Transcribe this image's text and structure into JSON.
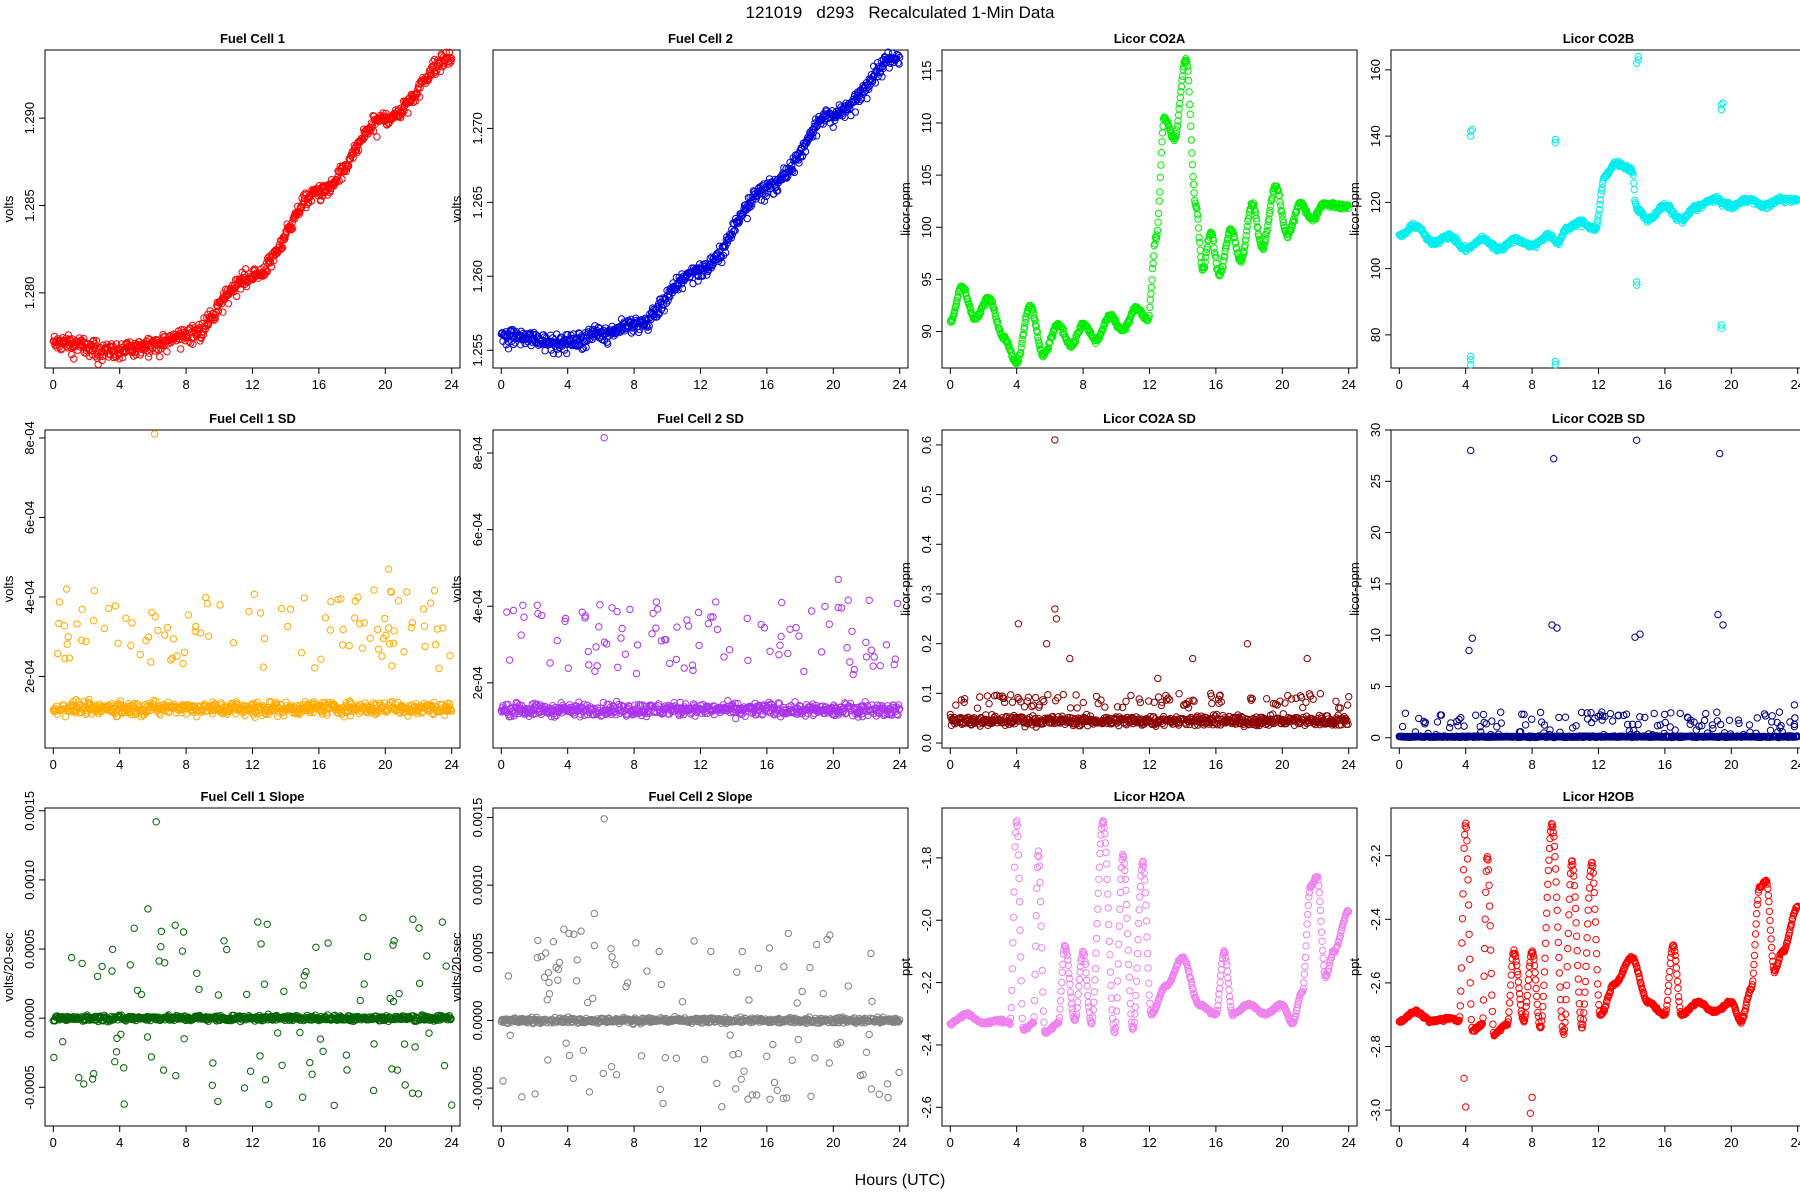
{
  "figure": {
    "title": "121019   d293   Recalculated 1-Min Data",
    "xlabel": "Hours (UTC)"
  },
  "chart_data": [
    {
      "id": "fc1",
      "type": "scatter",
      "title": "Fuel Cell 1",
      "ylabel": "volts",
      "color": "#ff0000",
      "xlim": [
        -0.5,
        24.5
      ],
      "ylim": [
        1.2757,
        1.2939
      ],
      "xticks": [
        0,
        4,
        8,
        12,
        16,
        20,
        24
      ],
      "yticks": [
        1.28,
        1.285,
        1.29
      ],
      "ytick_labels": [
        "1.280",
        "1.285",
        "1.290"
      ],
      "pattern": "curve",
      "spread": 0.0006,
      "anchors": [
        [
          0,
          1.2772
        ],
        [
          4,
          1.2767
        ],
        [
          6,
          1.2771
        ],
        [
          8,
          1.2776
        ],
        [
          12,
          1.281
        ],
        [
          16,
          1.2858
        ],
        [
          20,
          1.29
        ],
        [
          24,
          1.2935
        ]
      ]
    },
    {
      "id": "fc2",
      "type": "scatter",
      "title": "Fuel Cell 2",
      "ylabel": "volts",
      "color": "#0000dd",
      "xlim": [
        -0.5,
        24.5
      ],
      "ylim": [
        1.2538,
        1.2753
      ],
      "xticks": [
        0,
        4,
        8,
        12,
        16,
        20,
        24
      ],
      "yticks": [
        1.255,
        1.26,
        1.265,
        1.27
      ],
      "ytick_labels": [
        "1.255",
        "1.260",
        "1.265",
        "1.270"
      ],
      "pattern": "curve",
      "spread": 0.0007,
      "anchors": [
        [
          0,
          1.256
        ],
        [
          4,
          1.2556
        ],
        [
          6,
          1.2562
        ],
        [
          8,
          1.2568
        ],
        [
          12,
          1.2605
        ],
        [
          16,
          1.266
        ],
        [
          20,
          1.271
        ],
        [
          24,
          1.275
        ]
      ]
    },
    {
      "id": "co2a",
      "type": "scatter",
      "title": "Licor CO2A",
      "ylabel": "licor-ppm",
      "color": "#00ee00",
      "xlim": [
        -0.5,
        24.5
      ],
      "ylim": [
        86.5,
        117
      ],
      "xticks": [
        0,
        4,
        8,
        12,
        16,
        20,
        24
      ],
      "yticks": [
        90,
        95,
        100,
        105,
        110,
        115
      ],
      "ytick_labels": [
        "90",
        "95",
        "100",
        "105",
        "110",
        "115"
      ],
      "pattern": "curve",
      "spread": 0.3,
      "anchors": [
        [
          0,
          91
        ],
        [
          0.7,
          94.3
        ],
        [
          1.5,
          91.2
        ],
        [
          2.3,
          93.3
        ],
        [
          3.2,
          89.5
        ],
        [
          4,
          87
        ],
        [
          4.8,
          92.5
        ],
        [
          5.6,
          87.8
        ],
        [
          6.5,
          90.7
        ],
        [
          7.3,
          88.7
        ],
        [
          8,
          90.7
        ],
        [
          8.8,
          89.2
        ],
        [
          9.6,
          91.5
        ],
        [
          10.4,
          90.2
        ],
        [
          11.2,
          92.3
        ],
        [
          11.9,
          91.2
        ],
        [
          12.4,
          99
        ],
        [
          12.9,
          110.5
        ],
        [
          13.5,
          108.5
        ],
        [
          14.2,
          116.2
        ],
        [
          14.8,
          102
        ],
        [
          15.2,
          96
        ],
        [
          15.7,
          99.5
        ],
        [
          16.2,
          95.5
        ],
        [
          16.9,
          99.8
        ],
        [
          17.5,
          96.8
        ],
        [
          18.2,
          102.3
        ],
        [
          18.8,
          98
        ],
        [
          19.6,
          104
        ],
        [
          20.3,
          99.3
        ],
        [
          21.1,
          102.3
        ],
        [
          21.8,
          100.8
        ],
        [
          22.5,
          102.3
        ],
        [
          24,
          102
        ]
      ]
    },
    {
      "id": "co2b",
      "type": "scatter",
      "title": "Licor CO2B",
      "ylabel": "licor-ppm",
      "color": "#00eeee",
      "xlim": [
        -0.5,
        24.5
      ],
      "ylim": [
        70,
        166
      ],
      "xticks": [
        0,
        4,
        8,
        12,
        16,
        20,
        24
      ],
      "yticks": [
        80,
        100,
        120,
        140,
        160
      ],
      "ytick_labels": [
        "80",
        "100",
        "120",
        "140",
        "160"
      ],
      "pattern": "curve",
      "spread": 1.0,
      "anchors": [
        [
          0,
          110
        ],
        [
          1,
          113
        ],
        [
          2,
          108
        ],
        [
          3,
          110
        ],
        [
          4,
          106
        ],
        [
          5,
          109
        ],
        [
          6,
          106
        ],
        [
          7,
          109
        ],
        [
          8,
          107
        ],
        [
          9,
          110
        ],
        [
          9.6,
          108
        ],
        [
          10,
          112
        ],
        [
          11,
          114
        ],
        [
          11.8,
          112
        ],
        [
          12.4,
          128
        ],
        [
          13,
          132
        ],
        [
          14,
          130
        ],
        [
          14.3,
          118
        ],
        [
          15,
          115
        ],
        [
          16,
          119
        ],
        [
          17,
          115
        ],
        [
          18,
          119
        ],
        [
          19,
          121
        ],
        [
          20,
          119
        ],
        [
          21,
          121
        ],
        [
          22,
          119
        ],
        [
          23,
          121
        ],
        [
          24,
          121
        ]
      ],
      "outliers": [
        [
          4.3,
          71
        ],
        [
          4.3,
          72.5
        ],
        [
          4.3,
          73.5
        ],
        [
          4.3,
          140
        ],
        [
          4.3,
          141.5
        ],
        [
          4.4,
          142
        ],
        [
          9.4,
          71
        ],
        [
          9.4,
          72
        ],
        [
          9.4,
          138
        ],
        [
          9.4,
          139
        ],
        [
          14.3,
          95
        ],
        [
          14.3,
          96
        ],
        [
          14.3,
          162
        ],
        [
          14.4,
          163
        ],
        [
          14.4,
          164
        ],
        [
          19.4,
          82
        ],
        [
          19.4,
          83
        ],
        [
          19.4,
          148
        ],
        [
          19.4,
          149.5
        ],
        [
          19.5,
          150
        ]
      ]
    },
    {
      "id": "fc1sd",
      "type": "scatter",
      "title": "Fuel Cell 1 SD",
      "ylabel": "volts",
      "color": "#ffaa00",
      "xlim": [
        -0.5,
        24.5
      ],
      "ylim": [
        2e-05,
        0.00082
      ],
      "xticks": [
        0,
        4,
        8,
        12,
        16,
        20,
        24
      ],
      "yticks": [
        0.0002,
        0.0004,
        0.0006,
        0.0008
      ],
      "ytick_labels": [
        "2e-04",
        "4e-04",
        "6e-04",
        "8e-04"
      ],
      "pattern": "noise",
      "base": 0.00012,
      "spread": 2.5e-05,
      "high": [
        0.00022,
        0.00042
      ],
      "outliers": [
        [
          6.1,
          0.00081
        ],
        [
          20.2,
          0.00047
        ]
      ]
    },
    {
      "id": "fc2sd",
      "type": "scatter",
      "title": "Fuel Cell 2 SD",
      "ylabel": "volts",
      "color": "#aa33ee",
      "xlim": [
        -0.5,
        24.5
      ],
      "ylim": [
        3e-05,
        0.00086
      ],
      "xticks": [
        0,
        4,
        8,
        12,
        16,
        20,
        24
      ],
      "yticks": [
        0.0002,
        0.0004,
        0.0006,
        0.0008
      ],
      "ytick_labels": [
        "2e-04",
        "4e-04",
        "6e-04",
        "8e-04"
      ],
      "pattern": "noise",
      "base": 0.00013,
      "spread": 2.5e-05,
      "high": [
        0.00022,
        0.00042
      ],
      "outliers": [
        [
          6.2,
          0.00084
        ],
        [
          20.3,
          0.00047
        ]
      ]
    },
    {
      "id": "co2asd",
      "type": "scatter",
      "title": "Licor CO2A SD",
      "ylabel": "licor-ppm",
      "color": "#8b0000",
      "xlim": [
        -0.5,
        24.5
      ],
      "ylim": [
        -0.01,
        0.63
      ],
      "xticks": [
        0,
        4,
        8,
        12,
        16,
        20,
        24
      ],
      "yticks": [
        0.0,
        0.1,
        0.2,
        0.3,
        0.4,
        0.5,
        0.6
      ],
      "ytick_labels": [
        "0.0",
        "0.1",
        "0.2",
        "0.3",
        "0.4",
        "0.5",
        "0.6"
      ],
      "pattern": "noise",
      "base": 0.045,
      "spread": 0.015,
      "high": [
        0.07,
        0.1
      ],
      "outliers": [
        [
          6.3,
          0.61
        ],
        [
          4.1,
          0.24
        ],
        [
          6.3,
          0.27
        ],
        [
          6.4,
          0.25
        ],
        [
          5.8,
          0.2
        ],
        [
          12.5,
          0.13
        ],
        [
          14.6,
          0.17
        ],
        [
          17.9,
          0.2
        ],
        [
          21.5,
          0.17
        ],
        [
          7.2,
          0.17
        ]
      ]
    },
    {
      "id": "co2bsd",
      "type": "scatter",
      "title": "Licor CO2B SD",
      "ylabel": "licor-ppm",
      "color": "#00008b",
      "xlim": [
        -0.5,
        24.5
      ],
      "ylim": [
        -1,
        30
      ],
      "xticks": [
        0,
        4,
        8,
        12,
        16,
        20,
        24
      ],
      "yticks": [
        0,
        5,
        10,
        15,
        20,
        25,
        30
      ],
      "ytick_labels": [
        "0",
        "5",
        "10",
        "15",
        "20",
        "25",
        "30"
      ],
      "pattern": "noise",
      "base": 0.1,
      "spread": 0.1,
      "high": [
        0.3,
        2.5
      ],
      "outliers": [
        [
          4.3,
          28
        ],
        [
          4.2,
          8.5
        ],
        [
          4.4,
          9.7
        ],
        [
          4.6,
          2.2
        ],
        [
          9.3,
          27.2
        ],
        [
          9.2,
          11
        ],
        [
          9.5,
          10.7
        ],
        [
          14.3,
          29
        ],
        [
          14.2,
          9.8
        ],
        [
          14.5,
          10.1
        ],
        [
          19.3,
          27.7
        ],
        [
          19.2,
          12
        ],
        [
          19.5,
          11
        ],
        [
          23.8,
          3.2
        ],
        [
          23.8,
          1.3
        ],
        [
          12.2,
          2.5
        ],
        [
          13.2,
          2.2
        ]
      ]
    },
    {
      "id": "fc1slope",
      "type": "scatter",
      "title": "Fuel Cell 1 Slope",
      "ylabel": "volts/20-sec",
      "color": "#006400",
      "xlim": [
        -0.5,
        24.5
      ],
      "ylim": [
        -0.00078,
        0.00152
      ],
      "xticks": [
        0,
        4,
        8,
        12,
        16,
        20,
        24
      ],
      "yticks": [
        -0.0005,
        0.0,
        0.0005,
        0.001,
        0.0015
      ],
      "ytick_labels": [
        "-0.0005",
        "0.0000",
        "0.0005",
        "0.0010",
        "0.0015"
      ],
      "pattern": "noise",
      "base": 0.0,
      "spread": 3e-05,
      "high": [
        0.00012,
        0.00075
      ],
      "sym": true,
      "outliers": [
        [
          6.2,
          0.00142
        ],
        [
          5.7,
          0.00079
        ]
      ]
    },
    {
      "id": "fc2slope",
      "type": "scatter",
      "title": "Fuel Cell 2 Slope",
      "ylabel": "volts/20-sec",
      "color": "#808080",
      "xlim": [
        -0.5,
        24.5
      ],
      "ylim": [
        -0.00078,
        0.00157
      ],
      "xticks": [
        0,
        4,
        8,
        12,
        16,
        20,
        24
      ],
      "yticks": [
        -0.0005,
        0.0,
        0.0005,
        0.001,
        0.0015
      ],
      "ytick_labels": [
        "-0.0005",
        "0.0000",
        "0.0005",
        "0.0010",
        "0.0015"
      ],
      "pattern": "noise",
      "base": 0.0,
      "spread": 3e-05,
      "high": [
        0.00012,
        0.00075
      ],
      "sym": true,
      "outliers": [
        [
          6.2,
          0.00149
        ],
        [
          5.6,
          0.00079
        ]
      ]
    },
    {
      "id": "h2oa",
      "type": "scatter",
      "title": "Licor H2OA",
      "ylabel": "ppt",
      "color": "#ee82ee",
      "xlim": [
        -0.5,
        24.5
      ],
      "ylim": [
        -2.66,
        -1.64
      ],
      "xticks": [
        0,
        4,
        8,
        12,
        16,
        20,
        24
      ],
      "yticks": [
        -1.8,
        -2.0,
        -2.2,
        -2.4,
        -2.6
      ],
      "ytick_labels": [
        "-1.8",
        "-2.0",
        "-2.2",
        "-2.4",
        "-2.6"
      ],
      "pattern": "curve",
      "spread": 0.006,
      "anchors": [
        [
          0,
          -2.33
        ],
        [
          1,
          -2.3
        ],
        [
          2,
          -2.33
        ],
        [
          3,
          -2.32
        ],
        [
          3.6,
          -2.33
        ],
        [
          4,
          -1.68
        ],
        [
          4.4,
          -2.35
        ],
        [
          5,
          -2.33
        ],
        [
          5.3,
          -1.78
        ],
        [
          5.7,
          -2.36
        ],
        [
          6.5,
          -2.33
        ],
        [
          6.9,
          -2.08
        ],
        [
          7.5,
          -2.32
        ],
        [
          8,
          -2.1
        ],
        [
          8.5,
          -2.33
        ],
        [
          9.2,
          -1.68
        ],
        [
          9.9,
          -2.36
        ],
        [
          10.4,
          -1.79
        ],
        [
          11,
          -2.35
        ],
        [
          11.6,
          -1.81
        ],
        [
          12.1,
          -2.3
        ],
        [
          13,
          -2.21
        ],
        [
          14,
          -2.12
        ],
        [
          15,
          -2.27
        ],
        [
          16,
          -2.3
        ],
        [
          16.5,
          -2.1
        ],
        [
          17,
          -2.3
        ],
        [
          18,
          -2.27
        ],
        [
          19,
          -2.3
        ],
        [
          20,
          -2.27
        ],
        [
          20.6,
          -2.33
        ],
        [
          21.2,
          -2.23
        ],
        [
          21.7,
          -1.89
        ],
        [
          22.1,
          -1.86
        ],
        [
          22.6,
          -2.18
        ],
        [
          23.1,
          -2.1
        ],
        [
          24,
          -1.97
        ]
      ]
    },
    {
      "id": "h2ob",
      "type": "scatter",
      "title": "Licor H2OB",
      "ylabel": "ppt",
      "color": "#ff0000",
      "xlim": [
        -0.5,
        24.5
      ],
      "ylim": [
        -3.05,
        -2.05
      ],
      "xticks": [
        0,
        4,
        8,
        12,
        16,
        20,
        24
      ],
      "yticks": [
        -2.2,
        -2.4,
        -2.6,
        -2.8,
        -3.0
      ],
      "ytick_labels": [
        "-2.2",
        "-2.4",
        "-2.6",
        "-2.8",
        "-3.0"
      ],
      "pattern": "curve",
      "spread": 0.006,
      "anchors": [
        [
          0,
          -2.72
        ],
        [
          1,
          -2.69
        ],
        [
          2,
          -2.72
        ],
        [
          3,
          -2.71
        ],
        [
          3.6,
          -2.72
        ],
        [
          4,
          -2.1
        ],
        [
          4.4,
          -2.75
        ],
        [
          5,
          -2.73
        ],
        [
          5.3,
          -2.2
        ],
        [
          5.7,
          -2.76
        ],
        [
          6.5,
          -2.73
        ],
        [
          6.9,
          -2.5
        ],
        [
          7.5,
          -2.72
        ],
        [
          8,
          -2.5
        ],
        [
          8.5,
          -2.74
        ],
        [
          9.2,
          -2.1
        ],
        [
          9.9,
          -2.76
        ],
        [
          10.4,
          -2.22
        ],
        [
          11,
          -2.74
        ],
        [
          11.6,
          -2.22
        ],
        [
          12.1,
          -2.7
        ],
        [
          13,
          -2.6
        ],
        [
          14,
          -2.52
        ],
        [
          15,
          -2.66
        ],
        [
          16,
          -2.7
        ],
        [
          16.5,
          -2.48
        ],
        [
          17,
          -2.7
        ],
        [
          18,
          -2.66
        ],
        [
          19,
          -2.69
        ],
        [
          20,
          -2.66
        ],
        [
          20.6,
          -2.72
        ],
        [
          21.2,
          -2.62
        ],
        [
          21.7,
          -2.3
        ],
        [
          22.1,
          -2.28
        ],
        [
          22.6,
          -2.56
        ],
        [
          23.1,
          -2.5
        ],
        [
          24,
          -2.36
        ]
      ],
      "outliers": [
        [
          4,
          -2.99
        ],
        [
          3.9,
          -2.9
        ],
        [
          8,
          -2.96
        ],
        [
          7.9,
          -3.01
        ]
      ]
    }
  ]
}
